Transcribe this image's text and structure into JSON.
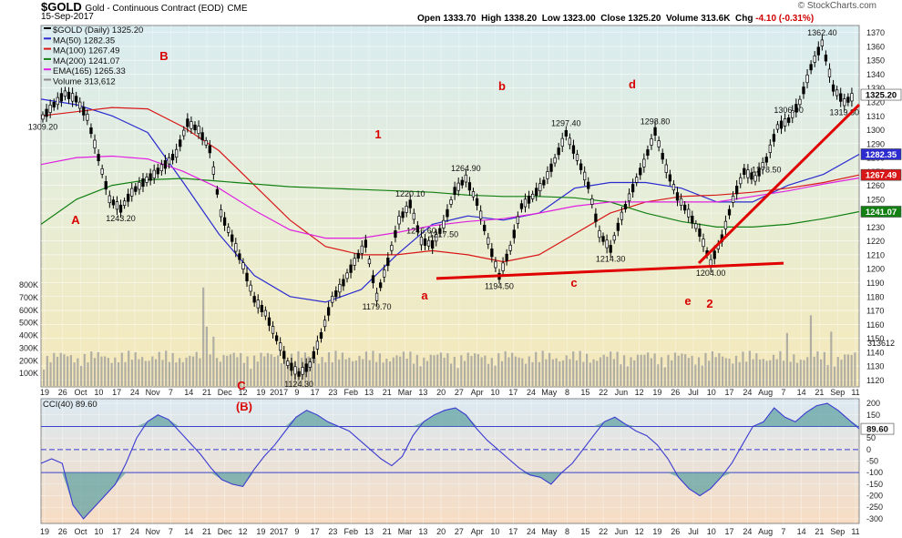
{
  "header": {
    "symbol": "$GOLD",
    "description": "Gold - Continuous Contract (EOD)",
    "exchange": "CME",
    "date": "15-Sep-2017",
    "open_label": "Open",
    "open": "1333.70",
    "high_label": "High",
    "high": "1338.20",
    "low_label": "Low",
    "low": "1323.00",
    "close_label": "Close",
    "close": "1325.20",
    "volume_label": "Volume",
    "volume": "313.6K",
    "chg_label": "Chg",
    "chg": "-4.10 (-0.31%)",
    "watermark": "© StockCharts.com"
  },
  "chart_data": [
    {
      "type": "line",
      "title": "$GOLD (Daily) 1325.20",
      "ylim": [
        1115,
        1375
      ],
      "yticks": [
        1120,
        1130,
        1140,
        1150,
        1160,
        1170,
        1180,
        1190,
        1200,
        1210,
        1220,
        1230,
        1240,
        1250,
        1260,
        1270,
        1280,
        1290,
        1300,
        1310,
        1320,
        1330,
        1340,
        1350,
        1360,
        1370
      ],
      "x_labels": [
        "19",
        "26",
        "Oct",
        "10",
        "17",
        "24",
        "Nov",
        "7",
        "14",
        "21",
        "Dec",
        "12",
        "19",
        "2017",
        "9",
        "17",
        "23",
        "Feb",
        "13",
        "21",
        "Mar",
        "13",
        "20",
        "27",
        "Apr",
        "10",
        "17",
        "24",
        "May",
        "8",
        "15",
        "22",
        "Jun",
        "12",
        "19",
        "26",
        "Jul",
        "10",
        "17",
        "24",
        "Aug",
        "7",
        "14",
        "21",
        "Sep",
        "11"
      ],
      "legend": [
        {
          "label": "$GOLD (Daily) 1325.20",
          "color": "#000000"
        },
        {
          "label": "MA(50) 1282.35",
          "color": "#2b2bd0"
        },
        {
          "label": "MA(100) 1267.49",
          "color": "#d81818"
        },
        {
          "label": "MA(200) 1241.07",
          "color": "#128012"
        },
        {
          "label": "EMA(165) 1265.33",
          "color": "#e020e0"
        },
        {
          "label": "Volume 313,612",
          "color": "#8a8a8a"
        }
      ],
      "price_path": [
        1309.2,
        1318,
        1326,
        1322,
        1309,
        1280,
        1250,
        1243.2,
        1255,
        1262,
        1268,
        1275,
        1283,
        1305,
        1300,
        1286,
        1240,
        1222,
        1202,
        1178,
        1168,
        1150,
        1132,
        1124.3,
        1131,
        1152,
        1178,
        1190,
        1205,
        1218,
        1179.7,
        1205,
        1235,
        1246.6,
        1220,
        1217.5,
        1232,
        1256,
        1264.9,
        1248,
        1220,
        1194.5,
        1215,
        1245,
        1252,
        1262,
        1278,
        1297.4,
        1280,
        1260,
        1225,
        1214.3,
        1238,
        1258,
        1276,
        1298.8,
        1272,
        1252,
        1240,
        1226,
        1204.0,
        1222,
        1250,
        1270,
        1265,
        1278.5,
        1302,
        1306.9,
        1320,
        1345,
        1362.4,
        1330,
        1319.8,
        1325.2
      ],
      "price_labels": [
        "1309.20",
        "1243.20",
        "1124.30",
        "1179.70",
        "1220.10",
        "1246.60",
        "1217.50",
        "1264.90",
        "1194.50",
        "1297.40",
        "1214.30",
        "1298.80",
        "1204.00",
        "1278.50",
        "1306.90",
        "1362.40",
        "1319.80"
      ],
      "series": [
        {
          "name": "MA(50)",
          "last": 1282.35,
          "values": [
            1322,
            1318,
            1310,
            1298,
            1262,
            1225,
            1195,
            1180,
            1176,
            1185,
            1210,
            1232,
            1238,
            1235,
            1240,
            1258,
            1262,
            1262,
            1258,
            1248,
            1248,
            1260,
            1268,
            1282.35
          ]
        },
        {
          "name": "MA(100)",
          "last": 1267.49,
          "values": [
            1310,
            1313,
            1316,
            1315,
            1302,
            1285,
            1260,
            1235,
            1216,
            1210,
            1210,
            1213,
            1210,
            1205,
            1210,
            1225,
            1240,
            1248,
            1252,
            1253,
            1255,
            1258,
            1262,
            1267.49
          ]
        },
        {
          "name": "MA(200)",
          "last": 1241.07,
          "values": [
            1232,
            1250,
            1260,
            1264,
            1265,
            1263,
            1261,
            1259,
            1258,
            1257,
            1256,
            1255,
            1253,
            1252,
            1252,
            1251,
            1248,
            1240,
            1234,
            1230,
            1230,
            1232,
            1236,
            1241.07
          ]
        },
        {
          "name": "EMA(165)",
          "last": 1265.33,
          "values": [
            1275,
            1280,
            1281,
            1279,
            1270,
            1258,
            1242,
            1228,
            1222,
            1222,
            1226,
            1231,
            1234,
            1236,
            1240,
            1245,
            1248,
            1248,
            1248,
            1248,
            1252,
            1256,
            1261,
            1265.33
          ]
        }
      ],
      "wave_labels": [
        "A",
        "B",
        "1",
        "a",
        "b",
        "c",
        "d",
        "e",
        "2",
        "(B)",
        "C"
      ],
      "current_badges": [
        {
          "text": "1325.20",
          "value": 1325.2,
          "bg": "#ffffff",
          "fg": "#000000"
        },
        {
          "text": "1282.35",
          "value": 1282.35,
          "bg": "#2b2bd0",
          "fg": "#ffffff"
        },
        {
          "text": "1267.49",
          "value": 1267.49,
          "bg": "#d81818",
          "fg": "#ffffff"
        },
        {
          "text": "1241.07",
          "value": 1241.07,
          "bg": "#128012",
          "fg": "#ffffff"
        }
      ],
      "trendlines": [
        {
          "from": [
            "Mar 13",
            1194
          ],
          "to": [
            "Aug 14",
            1204
          ]
        },
        {
          "from": [
            "Jul 10",
            1204
          ],
          "to": [
            "Sep 15",
            1316
          ]
        }
      ]
    },
    {
      "type": "bar",
      "title": "Volume",
      "volume_labels": [
        "800K",
        "700K",
        "600K",
        "500K",
        "400K",
        "300K",
        "200K",
        "100K"
      ],
      "ylim": [
        0,
        800
      ],
      "volume_last": "313612"
    },
    {
      "type": "line",
      "title": "CCI(40) 89.60",
      "ylim": [
        -320,
        220
      ],
      "yticks": [
        200,
        150,
        100,
        50,
        0,
        -50,
        -100,
        -150,
        -200,
        -250,
        -300
      ],
      "reference_lines": [
        100,
        0,
        -100
      ],
      "last_badge": "89.60",
      "values": [
        -60,
        -40,
        -60,
        -240,
        -300,
        -250,
        -200,
        -150,
        -60,
        50,
        120,
        150,
        130,
        80,
        30,
        -20,
        -80,
        -130,
        -150,
        -160,
        -90,
        -30,
        20,
        80,
        140,
        170,
        150,
        120,
        100,
        80,
        40,
        0,
        -40,
        -70,
        -30,
        60,
        120,
        150,
        170,
        180,
        150,
        90,
        40,
        0,
        -40,
        -80,
        -110,
        -120,
        -150,
        -100,
        -60,
        0,
        60,
        120,
        140,
        110,
        80,
        60,
        20,
        -40,
        -120,
        -170,
        -200,
        -170,
        -120,
        -60,
        20,
        100,
        120,
        180,
        140,
        120,
        160,
        190,
        200,
        170,
        130,
        90
      ]
    }
  ]
}
